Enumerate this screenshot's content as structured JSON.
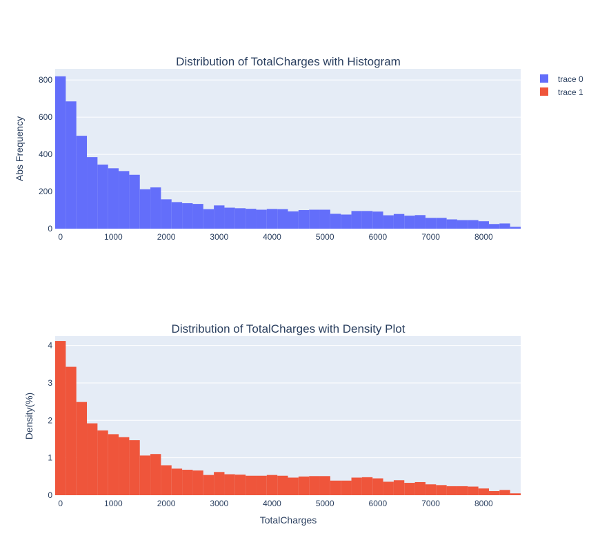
{
  "chart_data": [
    {
      "type": "bar",
      "title": "Distribution of TotalCharges with Histogram",
      "xlabel": "",
      "ylabel": "Abs Frequency",
      "xlim": [
        -100,
        8700
      ],
      "ylim": [
        0,
        860
      ],
      "x_ticks": [
        "0",
        "1000",
        "2000",
        "3000",
        "4000",
        "5000",
        "6000",
        "7000",
        "8000"
      ],
      "x_tick_values": [
        0,
        1000,
        2000,
        3000,
        4000,
        5000,
        6000,
        7000,
        8000
      ],
      "y_ticks": [
        "0",
        "200",
        "400",
        "600",
        "800"
      ],
      "y_tick_values": [
        0,
        200,
        400,
        600,
        800
      ],
      "bin_start": -100,
      "bin_width": 200,
      "series": [
        {
          "name": "trace 0",
          "color": "#636efa",
          "values": [
            820,
            685,
            500,
            385,
            345,
            325,
            310,
            290,
            212,
            222,
            158,
            143,
            137,
            133,
            105,
            125,
            113,
            110,
            107,
            102,
            106,
            105,
            93,
            100,
            102,
            102,
            80,
            76,
            95,
            95,
            92,
            72,
            79,
            70,
            73,
            58,
            58,
            50,
            46,
            46,
            40,
            25,
            28,
            10
          ]
        }
      ]
    },
    {
      "type": "bar",
      "title": "Distribution of TotalCharges with Density Plot",
      "xlabel": "TotalCharges",
      "ylabel": "Density(%)",
      "xlim": [
        -100,
        8700
      ],
      "ylim": [
        0,
        4.25
      ],
      "x_ticks": [
        "0",
        "1000",
        "2000",
        "3000",
        "4000",
        "5000",
        "6000",
        "7000",
        "8000"
      ],
      "x_tick_values": [
        0,
        1000,
        2000,
        3000,
        4000,
        5000,
        6000,
        7000,
        8000
      ],
      "y_ticks": [
        "0",
        "1",
        "2",
        "3",
        "4"
      ],
      "y_tick_values": [
        0,
        1,
        2,
        3,
        4
      ],
      "bin_start": -100,
      "bin_width": 200,
      "series": [
        {
          "name": "trace 1",
          "color": "#ef553b",
          "values": [
            4.12,
            3.43,
            2.49,
            1.92,
            1.73,
            1.63,
            1.55,
            1.47,
            1.06,
            1.1,
            0.8,
            0.71,
            0.68,
            0.66,
            0.54,
            0.62,
            0.56,
            0.55,
            0.52,
            0.52,
            0.54,
            0.52,
            0.47,
            0.5,
            0.51,
            0.51,
            0.39,
            0.39,
            0.47,
            0.48,
            0.45,
            0.36,
            0.4,
            0.33,
            0.35,
            0.29,
            0.27,
            0.24,
            0.24,
            0.23,
            0.18,
            0.11,
            0.14,
            0.05
          ]
        }
      ]
    }
  ],
  "legend": {
    "position": "top-right",
    "items": [
      {
        "name": "trace 0",
        "color": "#636efa"
      },
      {
        "name": "trace 1",
        "color": "#ef553b"
      }
    ]
  }
}
